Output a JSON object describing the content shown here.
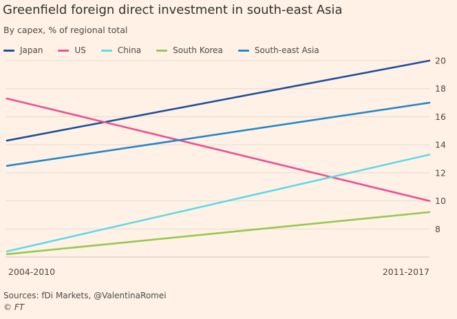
{
  "title": "Greenfield foreign direct investment in south-east Asia",
  "subtitle": "By capex, % of regional total",
  "source": "Sources: fDi Markets, @ValentinaRomei",
  "credit": "© FT",
  "chart_data": {
    "type": "line",
    "title": "Greenfield foreign direct investment in south-east Asia",
    "subtitle": "By capex, % of regional total",
    "xlabel": "",
    "ylabel": "",
    "categories": [
      "2004-2010",
      "2011-2017"
    ],
    "ylim": [
      6,
      21
    ],
    "yticks": [
      8,
      10,
      12,
      14,
      16,
      18,
      20
    ],
    "y_axis_side": "right",
    "grid": true,
    "legend_position": "top",
    "series": [
      {
        "name": "Japan",
        "color": "#1E4E9A",
        "values": [
          14.3,
          20.0
        ]
      },
      {
        "name": "US",
        "color": "#EF4F8F",
        "values": [
          17.3,
          10.0
        ]
      },
      {
        "name": "China",
        "color": "#5EDAE8",
        "values": [
          6.4,
          13.3
        ]
      },
      {
        "name": "South Korea",
        "color": "#96C74F",
        "values": [
          6.2,
          9.2
        ]
      },
      {
        "name": "South-east Asia",
        "color": "#2288CA",
        "values": [
          12.5,
          17.0
        ]
      }
    ]
  }
}
